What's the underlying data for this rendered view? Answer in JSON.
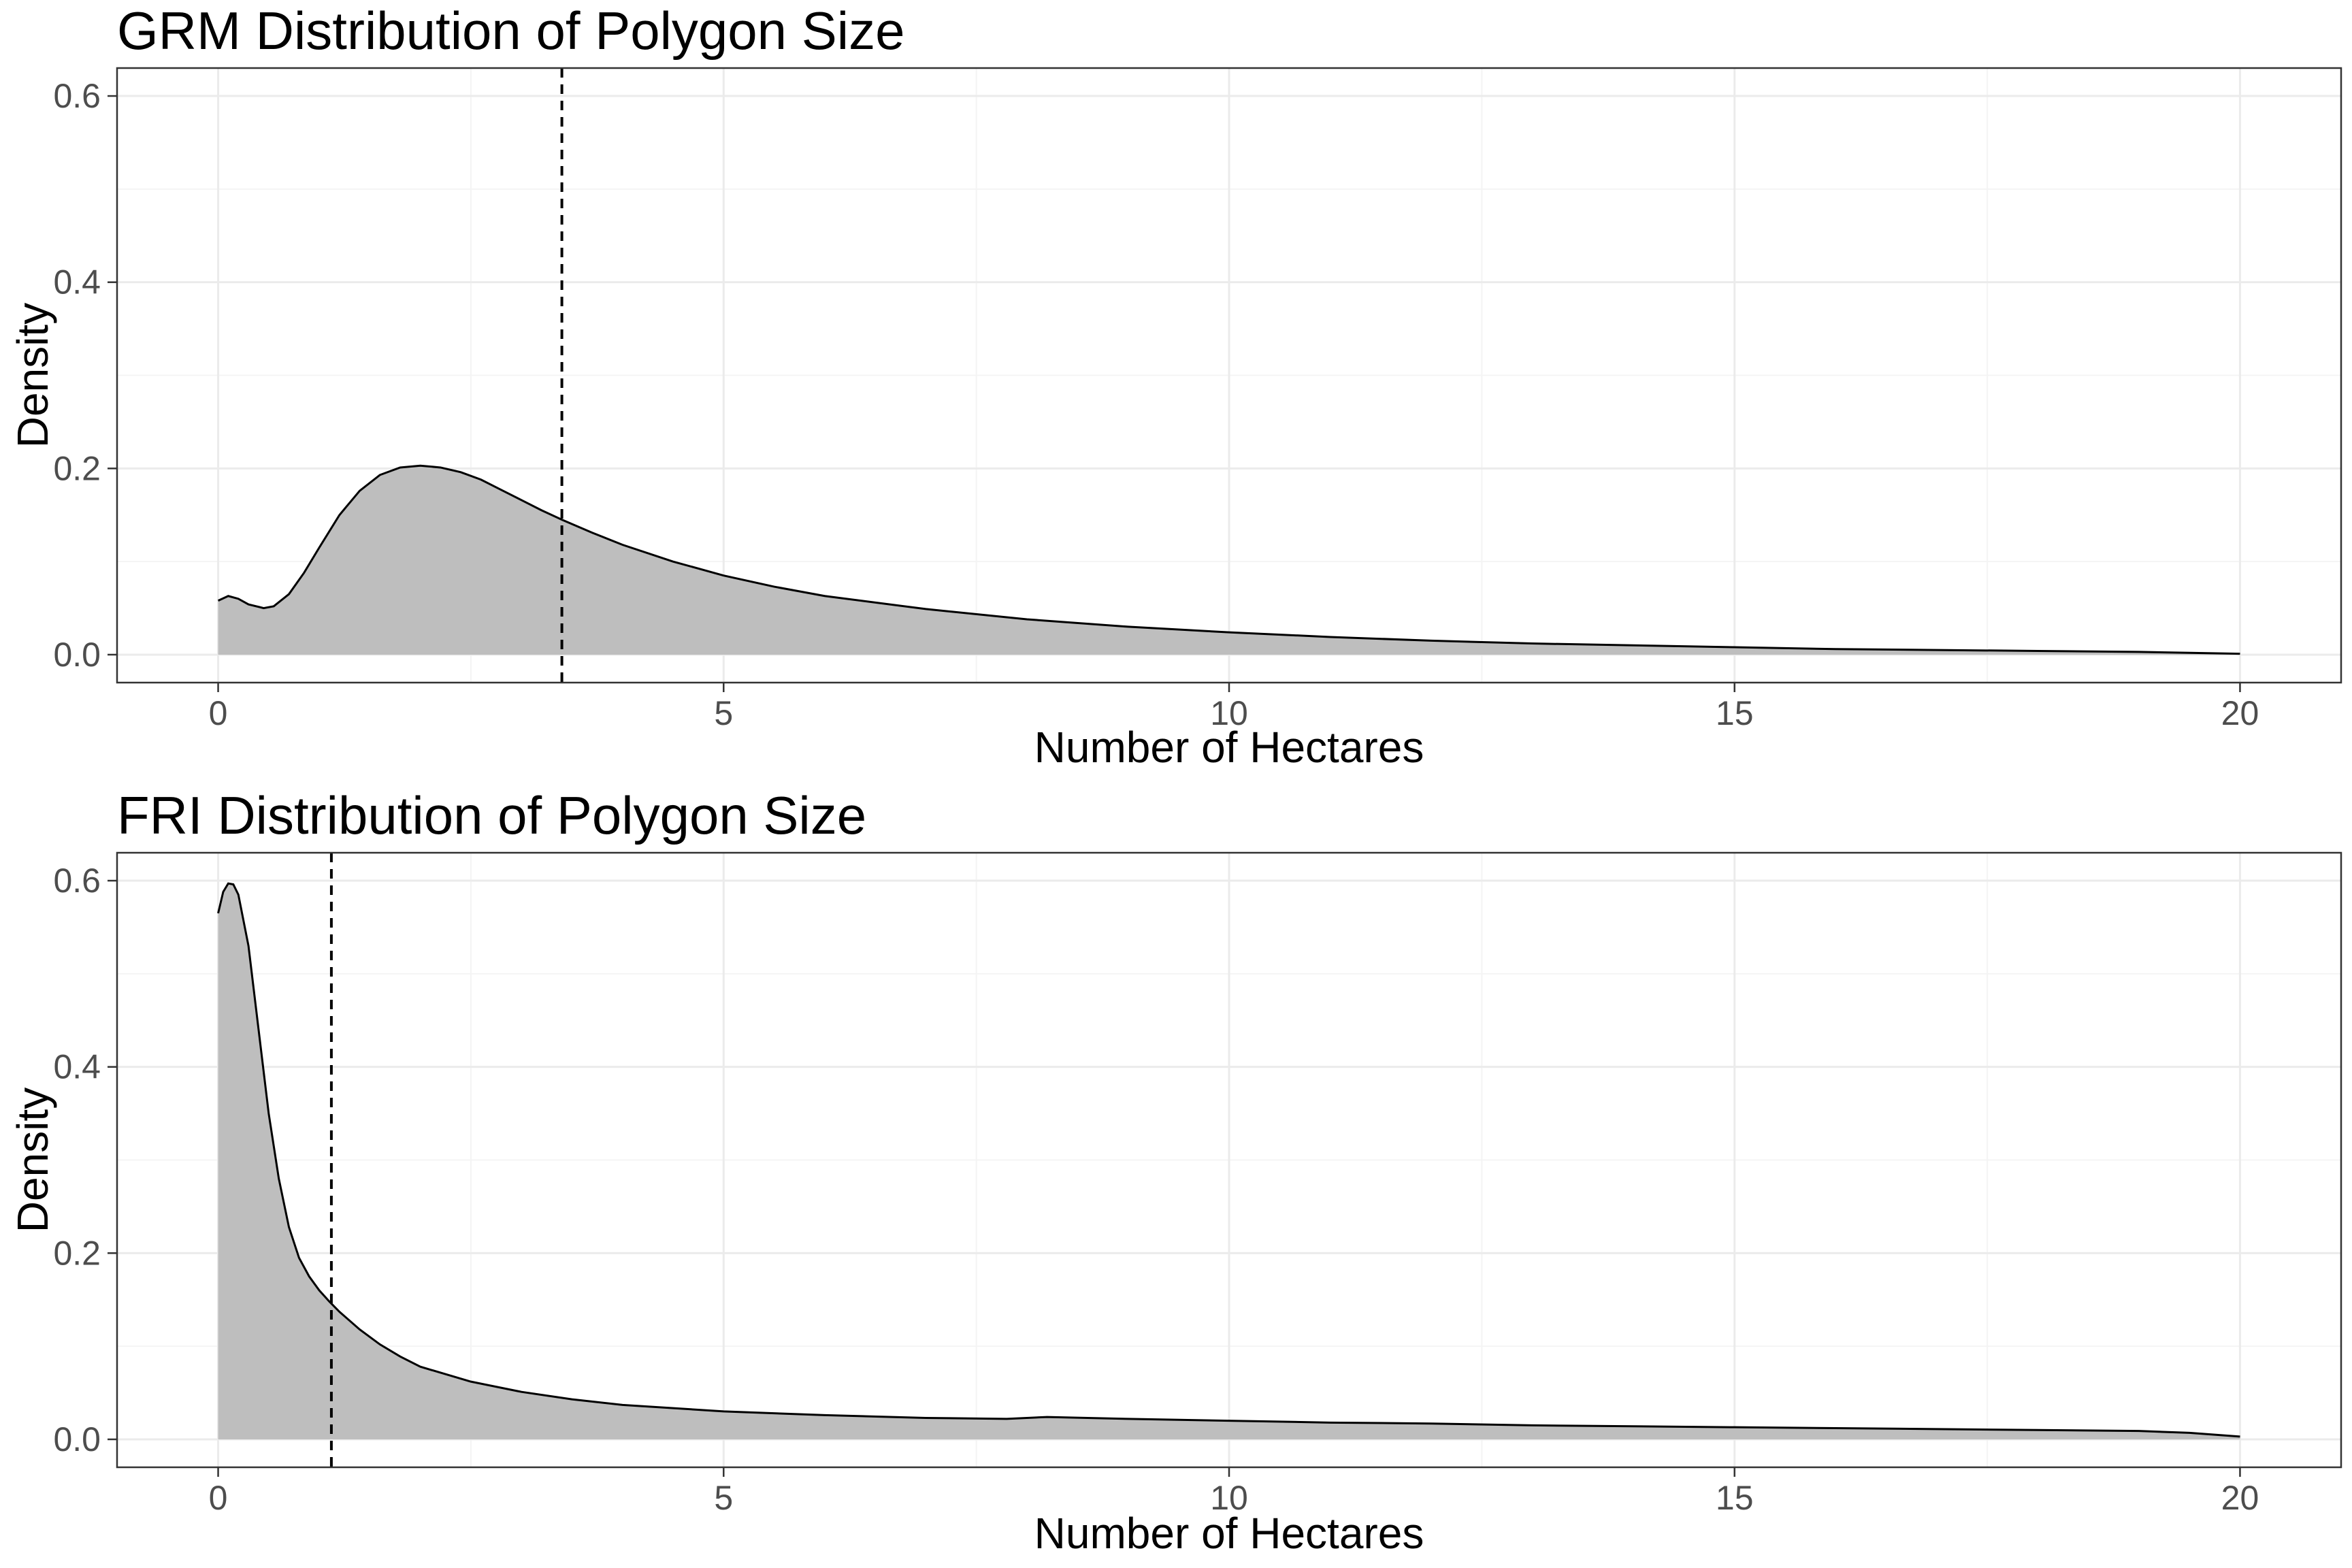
{
  "chart_data": [
    {
      "type": "area",
      "title": "GRM Distribution of Polygon Size",
      "xlabel": "Number of Hectares",
      "ylabel": "Density",
      "xlim": [
        -1,
        21
      ],
      "ylim": [
        -0.03,
        0.63
      ],
      "x_ticks": [
        0,
        5,
        10,
        15,
        20
      ],
      "x_tick_labels": [
        "0",
        "5",
        "10",
        "15",
        "20"
      ],
      "y_ticks": [
        0.0,
        0.2,
        0.4,
        0.6
      ],
      "y_tick_labels": [
        "0.0",
        "0.2",
        "0.4",
        "0.6"
      ],
      "grid": true,
      "reference_line": {
        "x": 3.4,
        "style": "dashed"
      },
      "fill_color": "#bebebe",
      "series": [
        {
          "x": [
            0,
            0.1,
            0.2,
            0.3,
            0.45,
            0.55,
            0.7,
            0.85,
            1.0,
            1.2,
            1.4,
            1.6,
            1.8,
            2.0,
            2.2,
            2.4,
            2.6,
            2.8,
            3.0,
            3.2,
            3.4,
            3.7,
            4.0,
            4.5,
            5.0,
            5.5,
            6.0,
            7.0,
            8.0,
            9.0,
            10.0,
            11.0,
            12.0,
            13.0,
            14.0,
            15.0,
            16.0,
            17.0,
            18.0,
            19.0,
            19.5,
            20.0
          ],
          "y": [
            0.058,
            0.063,
            0.06,
            0.054,
            0.05,
            0.052,
            0.065,
            0.088,
            0.115,
            0.15,
            0.176,
            0.193,
            0.201,
            0.203,
            0.201,
            0.196,
            0.188,
            0.177,
            0.166,
            0.155,
            0.145,
            0.131,
            0.118,
            0.1,
            0.085,
            0.073,
            0.063,
            0.049,
            0.038,
            0.03,
            0.024,
            0.019,
            0.015,
            0.012,
            0.01,
            0.008,
            0.006,
            0.005,
            0.004,
            0.003,
            0.002,
            0.001
          ]
        }
      ]
    },
    {
      "type": "area",
      "title": "FRI Distribution of Polygon Size",
      "xlabel": "Number of Hectares",
      "ylabel": "Density",
      "xlim": [
        -1,
        21
      ],
      "ylim": [
        -0.03,
        0.63
      ],
      "x_ticks": [
        0,
        5,
        10,
        15,
        20
      ],
      "x_tick_labels": [
        "0",
        "5",
        "10",
        "15",
        "20"
      ],
      "y_ticks": [
        0.0,
        0.2,
        0.4,
        0.6
      ],
      "y_tick_labels": [
        "0.0",
        "0.2",
        "0.4",
        "0.6"
      ],
      "grid": true,
      "reference_line": {
        "x": 1.12,
        "style": "dashed"
      },
      "fill_color": "#bebebe",
      "series": [
        {
          "x": [
            0,
            0.05,
            0.1,
            0.15,
            0.2,
            0.3,
            0.4,
            0.5,
            0.6,
            0.7,
            0.8,
            0.9,
            1.0,
            1.1,
            1.2,
            1.4,
            1.6,
            1.8,
            2.0,
            2.5,
            3.0,
            3.5,
            4.0,
            5.0,
            6.0,
            7.0,
            7.8,
            8.2,
            9.0,
            10.0,
            11.0,
            12.0,
            13.0,
            14.0,
            15.0,
            16.0,
            17.0,
            18.0,
            19.0,
            19.5,
            20.0
          ],
          "y": [
            0.565,
            0.588,
            0.597,
            0.596,
            0.585,
            0.53,
            0.44,
            0.35,
            0.28,
            0.228,
            0.195,
            0.175,
            0.16,
            0.148,
            0.137,
            0.118,
            0.102,
            0.089,
            0.078,
            0.062,
            0.051,
            0.043,
            0.037,
            0.03,
            0.026,
            0.023,
            0.022,
            0.024,
            0.022,
            0.02,
            0.018,
            0.017,
            0.015,
            0.014,
            0.013,
            0.012,
            0.011,
            0.01,
            0.009,
            0.007,
            0.003
          ]
        }
      ]
    }
  ]
}
